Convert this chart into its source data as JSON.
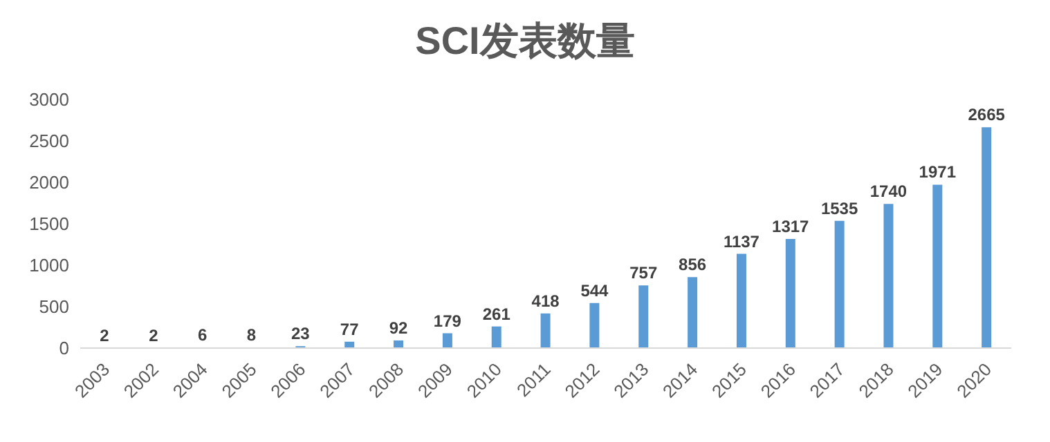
{
  "chart_data": {
    "type": "bar",
    "title": "SCI发表数量",
    "categories": [
      "2003",
      "2002",
      "2004",
      "2005",
      "2006",
      "2007",
      "2008",
      "2009",
      "2010",
      "2011",
      "2012",
      "2013",
      "2014",
      "2015",
      "2016",
      "2017",
      "2018",
      "2019",
      "2020"
    ],
    "values": [
      2,
      2,
      6,
      8,
      23,
      77,
      92,
      179,
      261,
      418,
      544,
      757,
      856,
      1137,
      1317,
      1535,
      1740,
      1971,
      2665
    ],
    "color": "#5b9bd5",
    "ylim": [
      0,
      3000
    ],
    "yticks": [
      0,
      500,
      1000,
      1500,
      2000,
      2500,
      3000
    ],
    "grid": false,
    "data_labels": true,
    "legend": false
  }
}
